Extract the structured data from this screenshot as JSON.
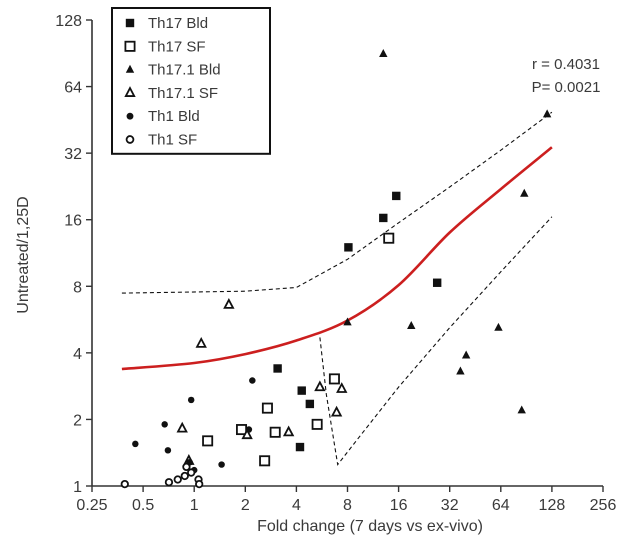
{
  "chart_data": {
    "type": "scatter",
    "title": "",
    "xlabel": "Fold change (7 days vs ex-vivo)",
    "ylabel": "Untreated/1,25D",
    "x_scale": "log2",
    "y_scale": "log2",
    "xlim": [
      0.25,
      256
    ],
    "ylim": [
      1,
      128
    ],
    "x_ticks": [
      0.25,
      0.5,
      1,
      2,
      4,
      8,
      16,
      32,
      64,
      128,
      256
    ],
    "x_tick_labels": [
      "0.25",
      "0.5",
      "1",
      "2",
      "4",
      "8",
      "16",
      "32",
      "64",
      "128",
      "256"
    ],
    "y_ticks": [
      1,
      2,
      4,
      8,
      16,
      32,
      64,
      128
    ],
    "y_tick_labels": [
      "1",
      "2",
      "4",
      "8",
      "16",
      "32",
      "64",
      "128"
    ],
    "annotation": {
      "r": "r = 0.4031",
      "p": "P= 0.0021"
    },
    "legend_position": "top-left",
    "colors": {
      "points": "#111111",
      "fit_line": "#cc1f1f",
      "confidence_band": "#111111",
      "axes": "#333333"
    },
    "series": [
      {
        "name": "Th17 Bld",
        "marker": "square-filled",
        "points": [
          [
            8.1,
            12.0
          ],
          [
            13,
            16.3
          ],
          [
            15.5,
            20.5
          ],
          [
            27,
            8.3
          ],
          [
            3.1,
            3.4
          ],
          [
            4.3,
            2.7
          ],
          [
            4.8,
            2.35
          ],
          [
            4.2,
            1.5
          ]
        ]
      },
      {
        "name": "Th17 SF",
        "marker": "square-open",
        "points": [
          [
            14,
            13.2
          ],
          [
            6.7,
            3.05
          ],
          [
            2.7,
            2.25
          ],
          [
            3.0,
            1.75
          ],
          [
            1.9,
            1.8
          ],
          [
            5.3,
            1.9
          ],
          [
            1.2,
            1.6
          ],
          [
            2.6,
            1.3
          ]
        ]
      },
      {
        "name": "Th17.1 Bld",
        "marker": "triangle-filled",
        "points": [
          [
            13,
            90
          ],
          [
            120,
            48
          ],
          [
            88,
            21
          ],
          [
            8,
            5.5
          ],
          [
            19,
            5.3
          ],
          [
            62,
            5.2
          ],
          [
            40,
            3.9
          ],
          [
            37,
            3.3
          ],
          [
            85,
            2.2
          ]
        ]
      },
      {
        "name": "Th17.1 SF",
        "marker": "triangle-open",
        "points": [
          [
            1.6,
            6.6
          ],
          [
            1.1,
            4.4
          ],
          [
            5.5,
            2.8
          ],
          [
            7.4,
            2.75
          ],
          [
            6.9,
            2.15
          ],
          [
            3.6,
            1.75
          ],
          [
            2.05,
            1.7
          ],
          [
            0.85,
            1.82
          ],
          [
            0.93,
            1.3
          ]
        ]
      },
      {
        "name": "Th1 Bld",
        "marker": "circle-filled",
        "points": [
          [
            2.2,
            3.0
          ],
          [
            0.96,
            2.45
          ],
          [
            0.67,
            1.9
          ],
          [
            0.45,
            1.55
          ],
          [
            0.7,
            1.45
          ],
          [
            0.94,
            1.28
          ],
          [
            1.0,
            1.18
          ],
          [
            1.45,
            1.25
          ],
          [
            2.1,
            1.8
          ]
        ]
      },
      {
        "name": "Th1 SF",
        "marker": "circle-open",
        "points": [
          [
            0.39,
            1.02
          ],
          [
            0.71,
            1.04
          ],
          [
            0.8,
            1.07
          ],
          [
            0.88,
            1.11
          ],
          [
            0.96,
            1.15
          ],
          [
            1.06,
            1.07
          ],
          [
            0.9,
            1.22
          ],
          [
            1.07,
            1.02
          ]
        ]
      }
    ],
    "fit_line": [
      [
        0.375,
        3.38
      ],
      [
        1,
        3.6
      ],
      [
        2,
        3.95
      ],
      [
        4,
        4.55
      ],
      [
        8,
        5.6
      ],
      [
        16,
        8.1
      ],
      [
        32,
        14.0
      ],
      [
        64,
        22.0
      ],
      [
        128,
        34.0
      ]
    ],
    "confidence_band": {
      "upper": [
        [
          0.375,
          7.45
        ],
        [
          2,
          7.6
        ],
        [
          4,
          7.9
        ],
        [
          8,
          10.6
        ],
        [
          16,
          15.5
        ],
        [
          32,
          22.5
        ],
        [
          64,
          33.0
        ],
        [
          128,
          49.0
        ]
      ],
      "lower": [
        [
          5.5,
          4.7
        ],
        [
          6,
          2.6
        ],
        [
          7,
          1.25
        ],
        [
          9,
          1.6
        ],
        [
          16,
          2.8
        ],
        [
          32,
          5.2
        ],
        [
          64,
          9.3
        ],
        [
          128,
          16.5
        ]
      ]
    }
  }
}
